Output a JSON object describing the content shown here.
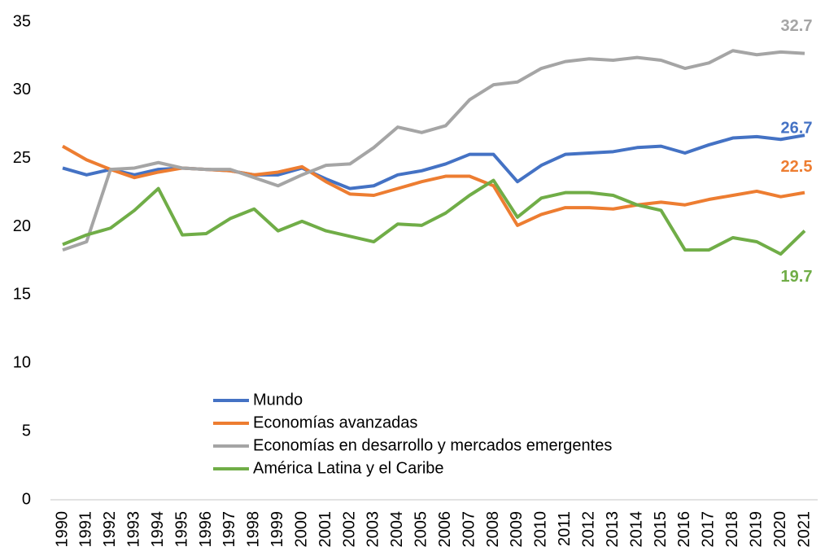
{
  "chart_data": {
    "type": "line",
    "categories": [
      "1990",
      "1991",
      "1992",
      "1993",
      "1994",
      "1995",
      "1996",
      "1997",
      "1998",
      "1999",
      "2000",
      "2001",
      "2002",
      "2003",
      "2004",
      "2005",
      "2006",
      "2007",
      "2008",
      "2009",
      "2010",
      "2011",
      "2012",
      "2013",
      "2014",
      "2015",
      "2016",
      "2017",
      "2018",
      "2019",
      "2020",
      "2021"
    ],
    "series": [
      {
        "name": "Mundo",
        "color": "#4472c4",
        "values": [
          24.3,
          23.8,
          24.2,
          23.8,
          24.2,
          24.3,
          24.2,
          24.1,
          23.8,
          23.8,
          24.3,
          23.5,
          22.8,
          23.0,
          23.8,
          24.1,
          24.6,
          25.3,
          25.3,
          23.3,
          24.5,
          25.3,
          25.4,
          25.5,
          25.8,
          25.9,
          25.4,
          26.0,
          26.5,
          26.6,
          26.4,
          26.7
        ]
      },
      {
        "name": "Economías avanzadas",
        "color": "#ed7d31",
        "values": [
          25.9,
          24.9,
          24.2,
          23.6,
          24.0,
          24.3,
          24.2,
          24.1,
          23.8,
          24.0,
          24.4,
          23.3,
          22.4,
          22.3,
          22.8,
          23.3,
          23.7,
          23.7,
          23.0,
          20.1,
          20.9,
          21.4,
          21.4,
          21.3,
          21.6,
          21.8,
          21.6,
          22.0,
          22.3,
          22.6,
          22.2,
          22.5
        ]
      },
      {
        "name": "Economías en desarrollo y mercados emergentes",
        "color": "#a5a5a5",
        "values": [
          18.3,
          18.9,
          24.2,
          24.3,
          24.7,
          24.3,
          24.2,
          24.2,
          23.6,
          23.0,
          23.8,
          24.5,
          24.6,
          25.8,
          27.3,
          26.9,
          27.4,
          29.3,
          30.4,
          30.6,
          31.6,
          32.1,
          32.3,
          32.2,
          32.4,
          32.2,
          31.6,
          32.0,
          32.9,
          32.6,
          32.8,
          32.7
        ]
      },
      {
        "name": "América Latina y el Caribe",
        "color": "#70ad47",
        "values": [
          18.7,
          19.4,
          19.9,
          21.2,
          22.8,
          19.4,
          19.5,
          20.6,
          21.3,
          19.7,
          20.4,
          19.7,
          19.3,
          18.9,
          20.2,
          20.1,
          21.0,
          22.3,
          23.4,
          20.7,
          22.1,
          22.5,
          22.5,
          22.3,
          21.6,
          21.2,
          18.3,
          18.3,
          19.2,
          18.9,
          18.0,
          19.7
        ]
      }
    ],
    "ylim": [
      0,
      35
    ],
    "yticks": [
      0,
      5,
      10,
      15,
      20,
      25,
      30,
      35
    ],
    "grid": false,
    "legend": "lower center"
  }
}
